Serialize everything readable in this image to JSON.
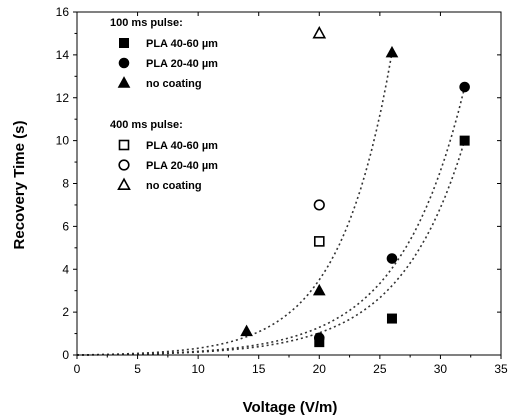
{
  "chart_data": {
    "type": "scatter",
    "xlabel": "Voltage (V/m)",
    "ylabel": "Recovery Time (s)",
    "xlim": [
      0,
      35
    ],
    "ylim": [
      0,
      16
    ],
    "xticks": [
      "0",
      "5",
      "10",
      "15",
      "20",
      "25",
      "30",
      "35"
    ],
    "yticks": [
      "0",
      "2",
      "4",
      "6",
      "8",
      "10",
      "12",
      "14",
      "16"
    ],
    "grid": false,
    "legend_position": "top-left",
    "legend_groups": [
      {
        "heading": "100 ms pulse:",
        "series": [
          {
            "name": "PLA 40-60 µm",
            "marker": "square",
            "filled": true,
            "points": [
              [
                20,
                0.6
              ],
              [
                26,
                1.7
              ],
              [
                32,
                10.0
              ]
            ]
          },
          {
            "name": "PLA 20-40 µm",
            "marker": "circle",
            "filled": true,
            "points": [
              [
                20,
                0.8
              ],
              [
                26,
                4.5
              ],
              [
                32,
                12.5
              ]
            ]
          },
          {
            "name": "no coating",
            "marker": "triangle",
            "filled": true,
            "points": [
              [
                14,
                1.1
              ],
              [
                20,
                3.0
              ],
              [
                26,
                14.1
              ]
            ]
          }
        ]
      },
      {
        "heading": "400 ms pulse:",
        "series": [
          {
            "name": "PLA 40-60 µm",
            "marker": "square",
            "filled": false,
            "points": [
              [
                20,
                5.3
              ]
            ]
          },
          {
            "name": "PLA 20-40 µm",
            "marker": "circle",
            "filled": false,
            "points": [
              [
                20,
                7.0
              ]
            ]
          },
          {
            "name": "no coating",
            "marker": "triangle",
            "filled": false,
            "points": [
              [
                20,
                15.0
              ]
            ]
          }
        ]
      }
    ],
    "fit_curves": [
      {
        "fits": "no coating (100 ms)",
        "style": "dotted",
        "type": "exponential",
        "points": [
          [
            0,
            0
          ],
          [
            26,
            14.1
          ]
        ]
      },
      {
        "fits": "PLA 20-40 µm (100 ms)",
        "style": "dotted",
        "type": "exponential",
        "points": [
          [
            0,
            0
          ],
          [
            32,
            12.5
          ]
        ]
      },
      {
        "fits": "PLA 40-60 µm (100 ms)",
        "style": "dotted",
        "type": "exponential",
        "points": [
          [
            0,
            0
          ],
          [
            32,
            10.0
          ]
        ]
      }
    ],
    "colors": {
      "marker": "#000000",
      "axis": "#000000",
      "fit": "#333333"
    }
  }
}
